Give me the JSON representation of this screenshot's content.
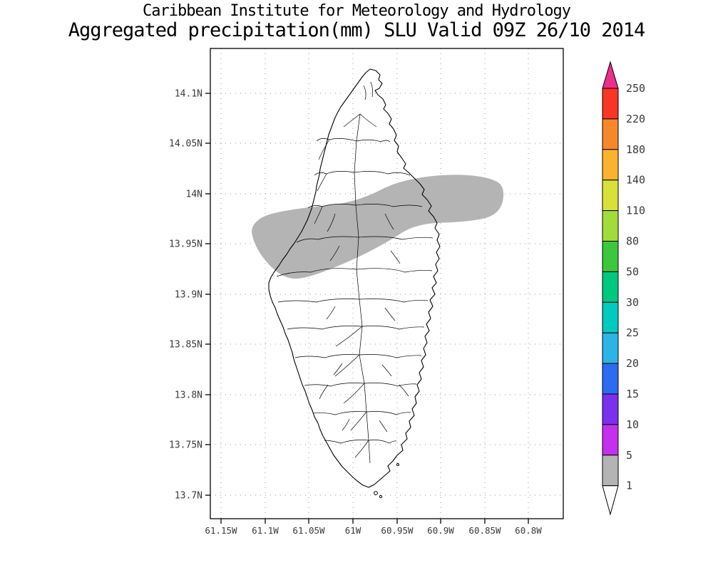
{
  "header": {
    "title_line1": "Caribbean Institute for Meteorology and Hydrology",
    "title_line2": "Aggregated precipitation(mm) SLU Valid 09Z 26/10 2014"
  },
  "map": {
    "y_axis_labels": [
      "14.1N",
      "14.05N",
      "14N",
      "13.95N",
      "13.9N",
      "13.85N",
      "13.8N",
      "13.75N",
      "13.7N"
    ],
    "x_axis_labels": [
      "61.15W",
      "61.1W",
      "61.05W",
      "61W",
      "60.95W",
      "60.9W",
      "60.85W",
      "60.8W"
    ],
    "shaded_region": {
      "color": "#b4b4b4"
    }
  },
  "colorbar": {
    "labels": [
      "250",
      "220",
      "180",
      "140",
      "110",
      "80",
      "50",
      "30",
      "25",
      "20",
      "15",
      "10",
      "5",
      "1"
    ],
    "colors_top_to_bottom": [
      "#ec2e8c",
      "#f93523",
      "#f7882a",
      "#fbb32e",
      "#d9e038",
      "#a2dc3a",
      "#3cc83c",
      "#00c87e",
      "#00cbbe",
      "#2bb4e8",
      "#2b6cf0",
      "#7a30ee",
      "#c430ee",
      "#b4b4b4",
      "#ffffff"
    ]
  }
}
